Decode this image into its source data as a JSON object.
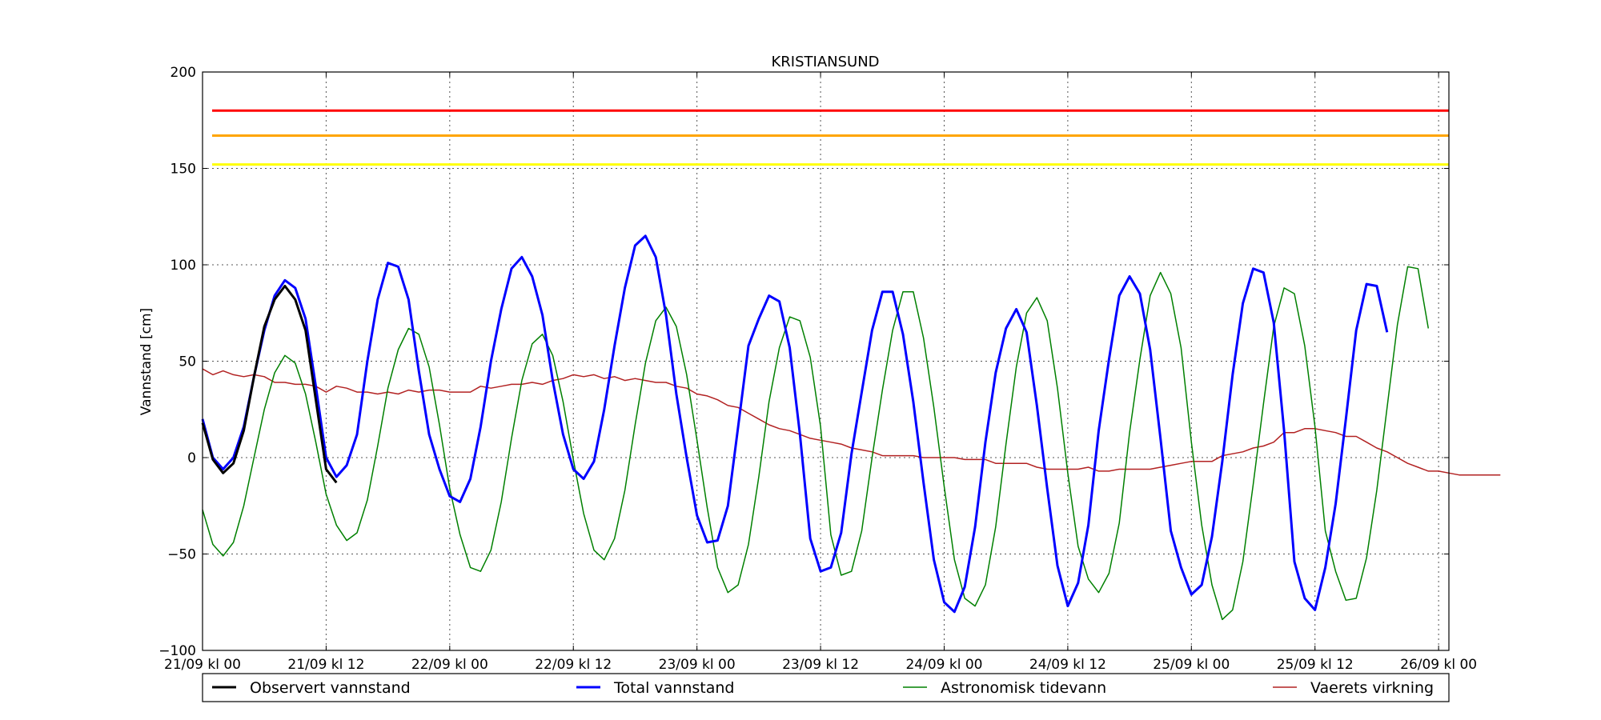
{
  "chart_data": {
    "type": "line",
    "title": "KRISTIANSUND",
    "xlabel": "",
    "ylabel": "Vannstand [cm]",
    "ylim": [
      -100,
      200
    ],
    "xlim": [
      "2014-09-21T00:00",
      "2014-09-26T01:00"
    ],
    "x_step": "hourly",
    "x_start": "2014-09-21T00:00",
    "yticks": [
      -100,
      -50,
      0,
      50,
      100,
      150,
      200
    ],
    "ytick_labels": [
      "−100",
      "−50",
      "0",
      "50",
      "100",
      "150",
      "200"
    ],
    "xticks": [
      "2014-09-21T00:00",
      "2014-09-21T12:00",
      "2014-09-22T00:00",
      "2014-09-22T12:00",
      "2014-09-23T00:00",
      "2014-09-23T12:00",
      "2014-09-24T00:00",
      "2014-09-24T12:00",
      "2014-09-25T00:00",
      "2014-09-25T12:00",
      "2014-09-26T00:00"
    ],
    "xtick_labels": [
      "21/09 kl 00",
      "21/09 kl 12",
      "22/09 kl 00",
      "22/09 kl 12",
      "23/09 kl 00",
      "23/09 kl 12",
      "24/09 kl 00",
      "24/09 kl 12",
      "25/09 kl 00",
      "25/09 kl 12",
      "26/09 kl 00"
    ],
    "grid": true,
    "legend_placement": "bottom",
    "thresholds": [
      {
        "value": 180,
        "color": "#ff0000"
      },
      {
        "value": 167,
        "color": "#ffa500"
      },
      {
        "value": 152,
        "color": "#ffff00"
      }
    ],
    "series": [
      {
        "name": "Observert vannstand",
        "color": "#000000",
        "width": 3,
        "values": [
          18,
          -1,
          -8,
          -3,
          14,
          42,
          68,
          82,
          89,
          82,
          66,
          30,
          -6,
          -13
        ]
      },
      {
        "name": "Total vannstand",
        "color": "#0000ff",
        "width": 3,
        "values": [
          20,
          0,
          -6,
          0,
          16,
          42,
          66,
          84,
          92,
          88,
          72,
          37,
          0,
          -10,
          -4,
          12,
          50,
          82,
          101,
          99,
          82,
          45,
          12,
          -6,
          -20,
          -23,
          -11,
          16,
          50,
          77,
          98,
          104,
          94,
          74,
          40,
          12,
          -6,
          -11,
          -2,
          25,
          58,
          88,
          110,
          115,
          104,
          74,
          33,
          0,
          -30,
          -44,
          -43,
          -25,
          16,
          58,
          72,
          84,
          81,
          57,
          12,
          -42,
          -59,
          -57,
          -39,
          2,
          34,
          66,
          86,
          86,
          64,
          29,
          -13,
          -53,
          -75,
          -80,
          -67,
          -36,
          8,
          44,
          67,
          77,
          65,
          27,
          -16,
          -56,
          -77,
          -65,
          -35,
          14,
          51,
          84,
          94,
          85,
          56,
          10,
          -38,
          -57,
          -71,
          -66,
          -41,
          -2,
          43,
          80,
          98,
          96,
          70,
          14,
          -54,
          -73,
          -79,
          -57,
          -24,
          20,
          66,
          90,
          89,
          65
        ]
      },
      {
        "name": "Astronomisk tidevann",
        "color": "#008000",
        "width": 1.5,
        "values": [
          -27,
          -45,
          -51,
          -44,
          -25,
          0,
          25,
          44,
          53,
          49,
          33,
          8,
          -19,
          -35,
          -43,
          -39,
          -22,
          6,
          36,
          56,
          67,
          64,
          47,
          17,
          -16,
          -40,
          -57,
          -59,
          -48,
          -23,
          10,
          40,
          59,
          64,
          53,
          29,
          -1,
          -29,
          -48,
          -53,
          -42,
          -17,
          17,
          49,
          71,
          78,
          68,
          43,
          9,
          -26,
          -57,
          -70,
          -66,
          -45,
          -10,
          29,
          57,
          73,
          71,
          52,
          16,
          -40,
          -61,
          -59,
          -38,
          0,
          35,
          66,
          86,
          86,
          62,
          26,
          -15,
          -53,
          -73,
          -77,
          -66,
          -36,
          7,
          47,
          75,
          83,
          71,
          36,
          -8,
          -46,
          -63,
          -70,
          -60,
          -34,
          13,
          51,
          84,
          96,
          85,
          57,
          8,
          -35,
          -66,
          -84,
          -79,
          -54,
          -14,
          28,
          68,
          88,
          85,
          58,
          16,
          -38,
          -59,
          -74,
          -73,
          -52,
          -17,
          26,
          69,
          99,
          98,
          67
        ]
      },
      {
        "name": "Vaerets virkning",
        "color": "#b22222",
        "width": 1.5,
        "values": [
          46,
          43,
          45,
          43,
          42,
          43,
          42,
          39,
          39,
          38,
          38,
          37,
          34,
          37,
          36,
          34,
          34,
          33,
          34,
          33,
          35,
          34,
          35,
          35,
          34,
          34,
          34,
          37,
          36,
          37,
          38,
          38,
          39,
          38,
          40,
          41,
          43,
          42,
          43,
          41,
          42,
          40,
          41,
          40,
          39,
          39,
          37,
          36,
          33,
          32,
          30,
          27,
          26,
          23,
          20,
          17,
          15,
          14,
          12,
          10,
          9,
          8,
          7,
          5,
          4,
          3,
          1,
          1,
          1,
          1,
          0,
          0,
          0,
          0,
          -1,
          -1,
          -1,
          -3,
          -3,
          -3,
          -3,
          -5,
          -6,
          -6,
          -6,
          -6,
          -5,
          -7,
          -7,
          -6,
          -6,
          -6,
          -6,
          -5,
          -4,
          -3,
          -2,
          -2,
          -2,
          1,
          2,
          3,
          5,
          6,
          8,
          13,
          13,
          15,
          15,
          14,
          13,
          11,
          11,
          8,
          5,
          3,
          0,
          -3,
          -5,
          -7,
          -7,
          -8,
          -9,
          -9,
          -9,
          -9,
          -9
        ]
      }
    ]
  }
}
